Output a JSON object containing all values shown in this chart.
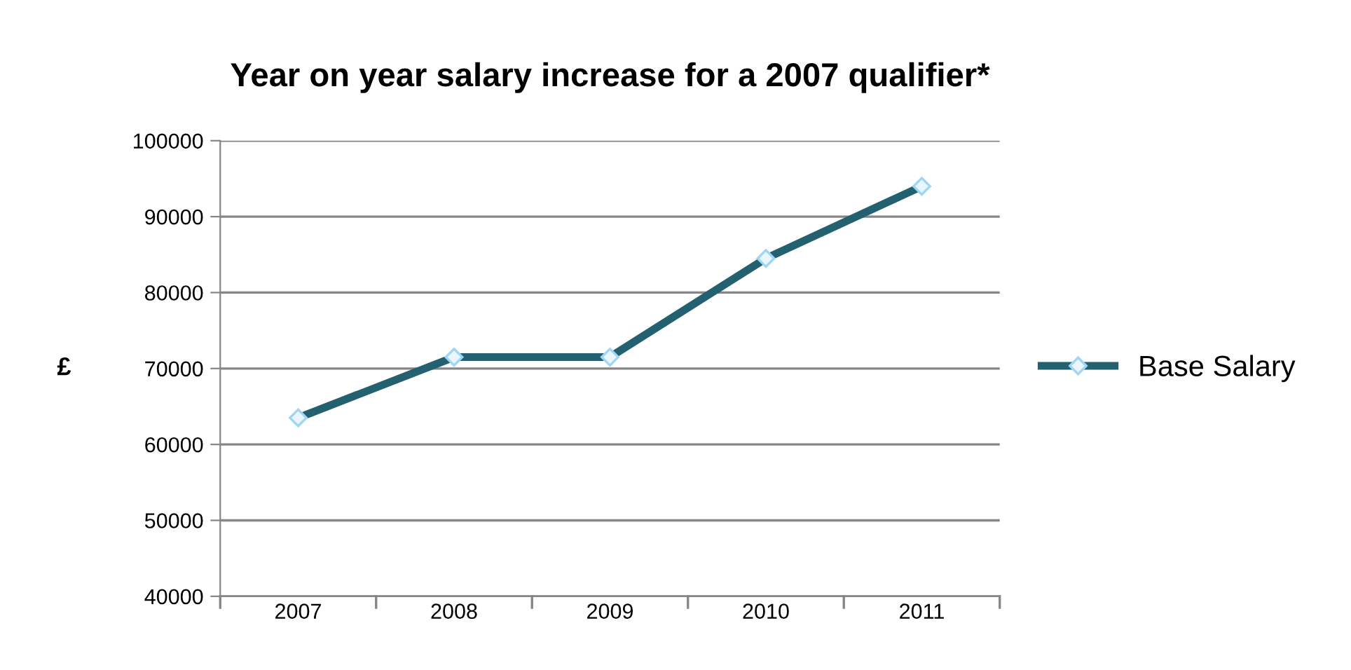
{
  "chart_data": {
    "type": "line",
    "title": "Year on year salary increase for a 2007 qualifier*",
    "ylabel": "£",
    "categories": [
      "2007",
      "2008",
      "2009",
      "2010",
      "2011"
    ],
    "series": [
      {
        "name": "Base Salary",
        "color": "#236170",
        "values": [
          63500,
          71500,
          71500,
          84500,
          94000
        ]
      }
    ],
    "ylim": [
      40000,
      100000
    ],
    "yticks": [
      40000,
      50000,
      60000,
      70000,
      80000,
      90000,
      100000
    ],
    "grid": "y",
    "legend": "right",
    "marker": "diamond",
    "line_style": "solid"
  }
}
